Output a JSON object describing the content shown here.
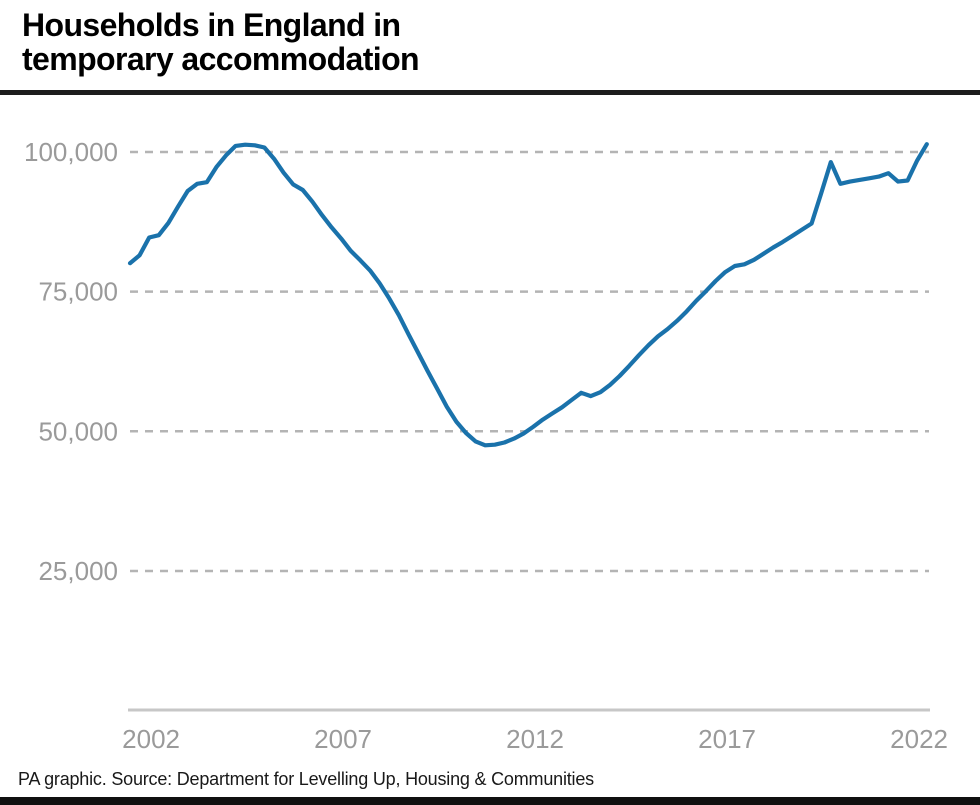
{
  "title": {
    "line1": "Households in England in",
    "line2": "temporary accommodation"
  },
  "footer": {
    "source_text": "PA graphic. Source: Department for Levelling Up, Housing & Communities"
  },
  "chart_data": {
    "type": "line",
    "title": "Households in England in temporary accommodation",
    "xlabel": "",
    "ylabel": "",
    "x_start": 2002.0,
    "x_step": 0.25,
    "x_ticks": [
      2002,
      2007,
      2012,
      2017,
      2022
    ],
    "x_tick_labels": [
      "2002",
      "2007",
      "2012",
      "2017",
      "2022"
    ],
    "y_ticks": [
      100000,
      75000,
      50000,
      25000
    ],
    "y_tick_labels": [
      "100,000",
      "75,000",
      "50,000",
      "25,000"
    ],
    "ylim": [
      0,
      105000
    ],
    "grid": "horizontal-dashed",
    "legend": "none",
    "line_color": "#1a72ab",
    "series": [
      {
        "name": "Households in temporary accommodation",
        "frequency": "quarterly",
        "quarterly_values": [
          80100,
          81500,
          84700,
          85100,
          87300,
          90200,
          93000,
          94300,
          94600,
          97300,
          99400,
          101100,
          101300,
          101200,
          100800,
          98800,
          96300,
          94200,
          93200,
          91100,
          88700,
          86500,
          84500,
          82300,
          80600,
          78800,
          76500,
          73800,
          70800,
          67400,
          64100,
          60800,
          57600,
          54400,
          51700,
          49700,
          48200,
          47500,
          47600,
          48000,
          48700,
          49600,
          50800,
          52100,
          53200,
          54300,
          55600,
          56900,
          56300,
          57000,
          58300,
          59900,
          61700,
          63600,
          65400,
          67000,
          68300,
          69800,
          71500,
          73400,
          75100,
          76900,
          78500,
          79600,
          79900,
          80700,
          81800,
          82900,
          83900,
          85000,
          86100,
          87200,
          92600,
          98200,
          94300,
          94700,
          95000,
          95300,
          95600,
          96200,
          94700,
          94900,
          98500,
          101400
        ]
      }
    ]
  }
}
